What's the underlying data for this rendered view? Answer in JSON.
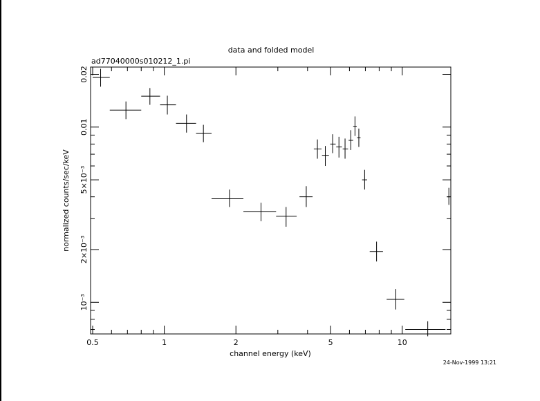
{
  "chart_data": {
    "type": "scatter",
    "title": "data and folded model",
    "subtitle": "ad77040000s010212_1.pi",
    "xlabel": "channel energy (keV)",
    "ylabel": "normalized counts/sec/keV",
    "x_scale": "log",
    "y_scale": "log",
    "xlim": [
      0.49,
      16.0
    ],
    "ylim": [
      0.00066,
      0.022
    ],
    "x_ticks": [
      {
        "value": 0.5,
        "label": "0.5"
      },
      {
        "value": 1,
        "label": "1"
      },
      {
        "value": 2,
        "label": "2"
      },
      {
        "value": 5,
        "label": "5"
      },
      {
        "value": 10,
        "label": "10"
      }
    ],
    "y_ticks": [
      {
        "value": 0.001,
        "label": "10⁻³"
      },
      {
        "value": 0.002,
        "label": "2×10⁻³"
      },
      {
        "value": 0.005,
        "label": "5×10⁻³"
      },
      {
        "value": 0.01,
        "label": "0.01"
      },
      {
        "value": 0.02,
        "label": "0.02"
      }
    ],
    "grid": false,
    "legend": "none",
    "series": [
      {
        "marker": "cross",
        "points": [
          {
            "x": 0.54,
            "xlo": 0.5,
            "xhi": 0.59,
            "y": 0.0192,
            "ylo": 0.017,
            "yhi": 0.0215
          },
          {
            "x": 0.69,
            "xlo": 0.59,
            "xhi": 0.8,
            "y": 0.0125,
            "ylo": 0.0111,
            "yhi": 0.014
          },
          {
            "x": 0.87,
            "xlo": 0.8,
            "xhi": 0.96,
            "y": 0.015,
            "ylo": 0.0134,
            "yhi": 0.0167
          },
          {
            "x": 1.03,
            "xlo": 0.96,
            "xhi": 1.12,
            "y": 0.0134,
            "ylo": 0.0118,
            "yhi": 0.0151
          },
          {
            "x": 1.24,
            "xlo": 1.12,
            "xhi": 1.36,
            "y": 0.0105,
            "ylo": 0.0093,
            "yhi": 0.0118
          },
          {
            "x": 1.46,
            "xlo": 1.36,
            "xhi": 1.58,
            "y": 0.0092,
            "ylo": 0.0082,
            "yhi": 0.0103
          },
          {
            "x": 1.88,
            "xlo": 1.58,
            "xhi": 2.15,
            "y": 0.0039,
            "ylo": 0.0035,
            "yhi": 0.0044
          },
          {
            "x": 2.55,
            "xlo": 2.15,
            "xhi": 2.95,
            "y": 0.0033,
            "ylo": 0.0029,
            "yhi": 0.0037
          },
          {
            "x": 3.25,
            "xlo": 2.95,
            "xhi": 3.6,
            "y": 0.0031,
            "ylo": 0.0027,
            "yhi": 0.0035
          },
          {
            "x": 3.95,
            "xlo": 3.7,
            "xhi": 4.2,
            "y": 0.004,
            "ylo": 0.0035,
            "yhi": 0.0046
          },
          {
            "x": 4.4,
            "xlo": 4.25,
            "xhi": 4.58,
            "y": 0.0075,
            "ylo": 0.0066,
            "yhi": 0.0085
          },
          {
            "x": 4.75,
            "xlo": 4.6,
            "xhi": 4.92,
            "y": 0.0069,
            "ylo": 0.006,
            "yhi": 0.0078
          },
          {
            "x": 5.1,
            "xlo": 4.98,
            "xhi": 5.25,
            "y": 0.008,
            "ylo": 0.0071,
            "yhi": 0.0091
          },
          {
            "x": 5.42,
            "xlo": 5.28,
            "xhi": 5.58,
            "y": 0.0077,
            "ylo": 0.0067,
            "yhi": 0.0088
          },
          {
            "x": 5.75,
            "xlo": 5.62,
            "xhi": 5.92,
            "y": 0.0075,
            "ylo": 0.0066,
            "yhi": 0.0086
          },
          {
            "x": 6.08,
            "xlo": 5.95,
            "xhi": 6.22,
            "y": 0.0084,
            "ylo": 0.0074,
            "yhi": 0.0096
          },
          {
            "x": 6.33,
            "xlo": 6.22,
            "xhi": 6.44,
            "y": 0.0101,
            "ylo": 0.0089,
            "yhi": 0.0115
          },
          {
            "x": 6.57,
            "xlo": 6.46,
            "xhi": 6.68,
            "y": 0.0087,
            "ylo": 0.0077,
            "yhi": 0.0098
          },
          {
            "x": 6.95,
            "xlo": 6.78,
            "xhi": 7.12,
            "y": 0.005,
            "ylo": 0.0044,
            "yhi": 0.0057
          },
          {
            "x": 7.8,
            "xlo": 7.3,
            "xhi": 8.3,
            "y": 0.00195,
            "ylo": 0.00171,
            "yhi": 0.00222
          },
          {
            "x": 9.4,
            "xlo": 8.6,
            "xhi": 10.2,
            "y": 0.00104,
            "ylo": 0.00091,
            "yhi": 0.00119
          },
          {
            "x": 12.8,
            "xlo": 10.3,
            "xhi": 15.2,
            "y": 0.0007,
            "ylo": 0.00064,
            "yhi": 0.00078
          },
          {
            "x": 15.7,
            "xlo": 15.5,
            "xhi": 15.9,
            "y": 0.004,
            "ylo": 0.0036,
            "yhi": 0.0045
          }
        ]
      }
    ]
  },
  "footer": {
    "timestamp": "24-Nov-1999 13:21"
  }
}
